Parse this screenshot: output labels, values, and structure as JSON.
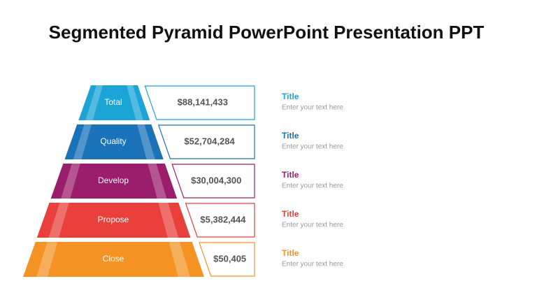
{
  "header": {
    "title": "Segmented Pyramid PowerPoint Presentation PPT"
  },
  "levels": [
    {
      "label": "Total",
      "amount": "$88,141,433",
      "heading": "Title",
      "text": "Enter your text here",
      "color": "#1ba5d6"
    },
    {
      "label": "Quality",
      "amount": "$52,704,284",
      "heading": "Title",
      "text": "Enter your text here",
      "color": "#1a72b8"
    },
    {
      "label": "Develop",
      "amount": "$30,004,300",
      "heading": "Title",
      "text": "Enter your text here",
      "color": "#9a1e6c"
    },
    {
      "label": "Propose",
      "amount": "$5,382,444",
      "heading": "Title",
      "text": "Enter your text here",
      "color": "#e9403b"
    },
    {
      "label": "Close",
      "amount": "$50,405",
      "heading": "Title",
      "text": "Enter your text here",
      "color": "#f49323"
    }
  ]
}
